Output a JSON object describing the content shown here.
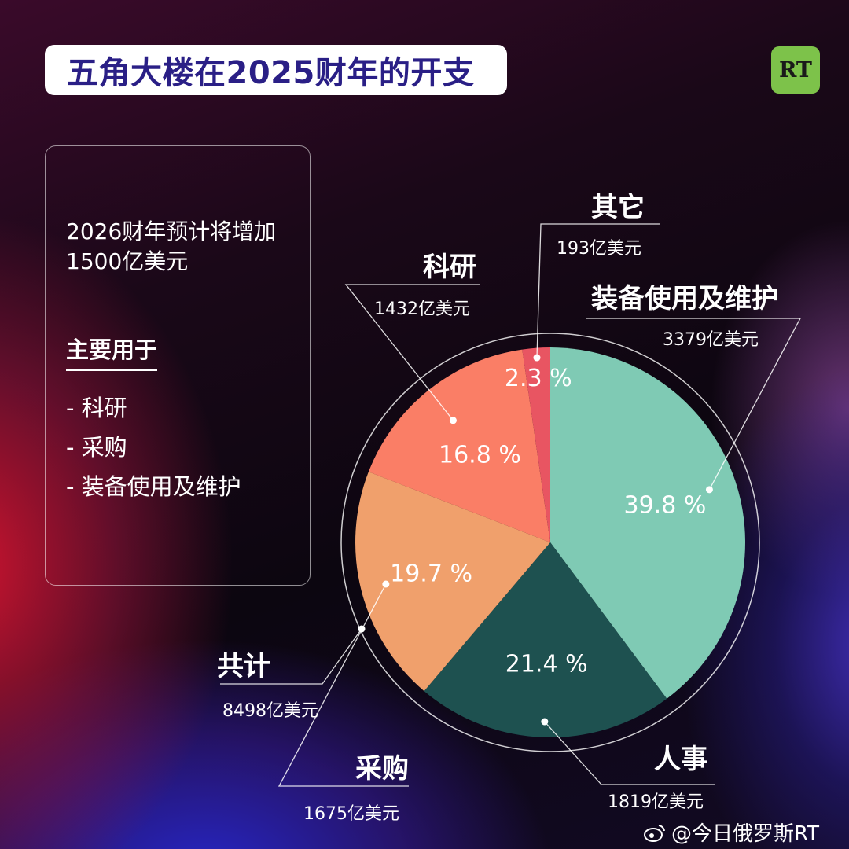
{
  "title": "五角大楼在2025财年的开支",
  "logo": "RT",
  "info": {
    "line1": "2026财年预计将增加",
    "line2": "1500亿美元",
    "heading": "主要用于",
    "items": [
      "- 科研",
      "- 采购",
      "- 装备使用及维护"
    ]
  },
  "total": {
    "label": "共计",
    "amount": "8498亿美元"
  },
  "watermark": "@今日俄罗斯RT",
  "colors": {
    "equipment": "#7fcab4",
    "personnel": "#1e5150",
    "procurement": "#f0a06c",
    "research": "#fa7e66",
    "other": "#e85562"
  },
  "chart_data": {
    "type": "pie",
    "title": "五角大楼在2025财年的开支",
    "categories": [
      "装备使用及维护",
      "人事",
      "采购",
      "科研",
      "其它"
    ],
    "values": [
      39.8,
      21.4,
      19.7,
      16.8,
      2.3
    ],
    "value_labels": [
      "39.8 %",
      "21.4 %",
      "19.7 %",
      "16.8 %",
      "2.3 %"
    ],
    "amounts": [
      "3379亿美元",
      "1819亿美元",
      "1675亿美元",
      "1432亿美元",
      "193亿美元"
    ],
    "total": "8498亿美元",
    "start": "12 o'clock",
    "direction": "clockwise"
  }
}
